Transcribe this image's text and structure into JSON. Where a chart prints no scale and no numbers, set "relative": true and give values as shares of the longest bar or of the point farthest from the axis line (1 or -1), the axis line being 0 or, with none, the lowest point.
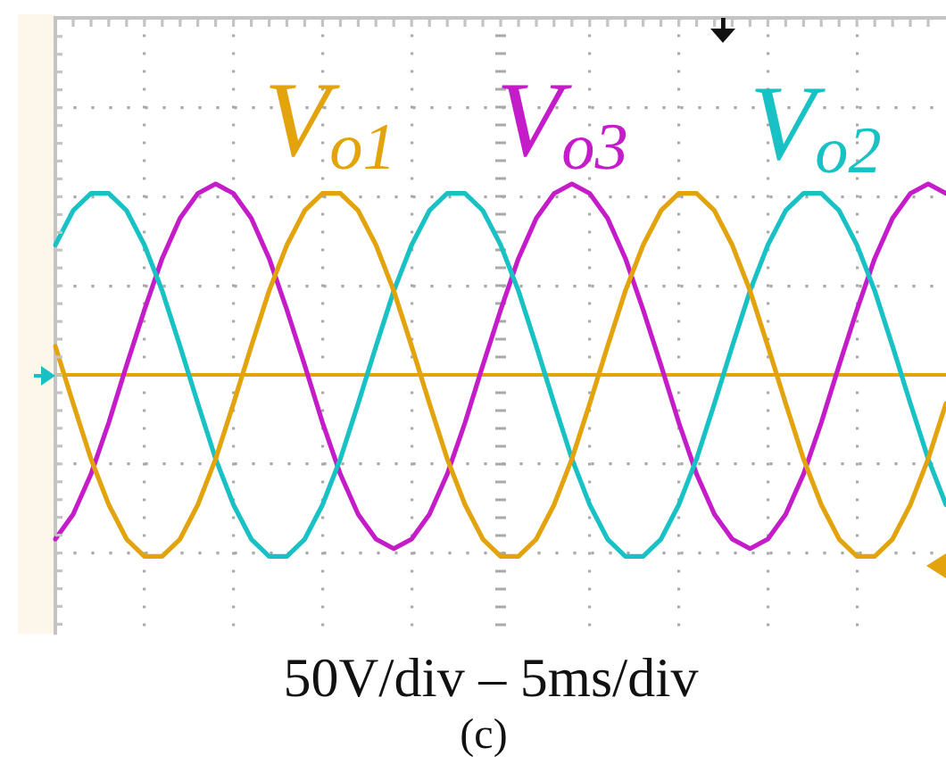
{
  "chart_data": {
    "type": "line",
    "relative": true,
    "categories": [
      null,
      null,
      null,
      null,
      null,
      null,
      null,
      null,
      null,
      null,
      null,
      null,
      null,
      null,
      null,
      null,
      null,
      null,
      null,
      null,
      null,
      null,
      null,
      null,
      null,
      null,
      null,
      null,
      null,
      null,
      null,
      null,
      null,
      null,
      null,
      null,
      null,
      null,
      null,
      null,
      null,
      null,
      null,
      null,
      null,
      null,
      null,
      null,
      null,
      null,
      null
    ],
    "series": [
      {
        "name": "V$_{o1}$",
        "color": "#e2a30c",
        "values": [
          0.15,
          -0.15,
          -0.44,
          -0.68,
          -0.86,
          -0.95,
          -0.95,
          -0.86,
          -0.68,
          -0.44,
          -0.15,
          0.15,
          0.44,
          0.68,
          0.86,
          0.95,
          0.95,
          0.86,
          0.68,
          0.44,
          0.15,
          -0.15,
          -0.44,
          -0.68,
          -0.86,
          -0.95,
          -0.95,
          -0.86,
          -0.68,
          -0.44,
          -0.15,
          0.15,
          0.44,
          0.68,
          0.86,
          0.95,
          0.95,
          0.86,
          0.68,
          0.44,
          0.15,
          -0.15,
          -0.44,
          -0.68,
          -0.86,
          -0.95,
          -0.95,
          -0.86,
          -0.68,
          -0.44,
          -0.15
        ]
      },
      {
        "name": "V$_{o2}$",
        "color": "#17c1c4",
        "values": [
          0.68,
          0.86,
          0.95,
          0.95,
          0.86,
          0.68,
          0.44,
          0.15,
          -0.15,
          -0.44,
          -0.68,
          -0.86,
          -0.95,
          -0.95,
          -0.86,
          -0.68,
          -0.44,
          -0.15,
          0.15,
          0.44,
          0.68,
          0.86,
          0.95,
          0.95,
          0.86,
          0.68,
          0.44,
          0.15,
          -0.15,
          -0.44,
          -0.68,
          -0.86,
          -0.95,
          -0.95,
          -0.86,
          -0.68,
          -0.44,
          -0.15,
          0.15,
          0.44,
          0.68,
          0.86,
          0.95,
          0.95,
          0.86,
          0.68,
          0.44,
          0.15,
          -0.15,
          -0.44,
          -0.68
        ]
      },
      {
        "name": "V$_{o3}$",
        "color": "#c51cc9",
        "values": [
          -0.86,
          -0.73,
          -0.52,
          -0.25,
          0.05,
          0.34,
          0.61,
          0.82,
          0.95,
          1,
          0.95,
          0.82,
          0.61,
          0.34,
          0.05,
          -0.25,
          -0.52,
          -0.73,
          -0.86,
          -0.91,
          -0.86,
          -0.73,
          -0.52,
          -0.25,
          0.05,
          0.34,
          0.61,
          0.82,
          0.95,
          1,
          0.95,
          0.82,
          0.61,
          0.34,
          0.05,
          -0.25,
          -0.52,
          -0.73,
          -0.86,
          -0.91,
          -0.86,
          -0.73,
          -0.52,
          -0.25,
          0.05,
          0.34,
          0.61,
          0.82,
          0.95,
          1,
          0.95
        ]
      }
    ],
    "ref_lines": [
      {
        "axis": "y",
        "value": 0,
        "color": "#e2a30c"
      }
    ],
    "annotations": [
      "50V/div – 5ms/div",
      "(c)"
    ],
    "grid": true,
    "legend": false,
    "marker": "none",
    "line_style": "solid"
  }
}
